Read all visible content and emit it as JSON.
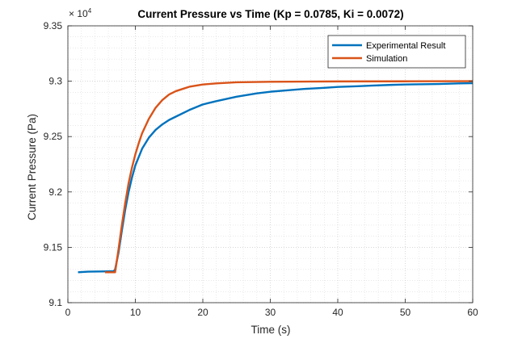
{
  "chart_data": {
    "type": "line",
    "title": "Current Pressure vs Time (Kp = 0.0785, Ki = 0.0072)",
    "xlabel": "Time (s)",
    "ylabel": "Current Pressure (Pa)",
    "exponent_label": "× 10",
    "exponent_power": "4",
    "xlim": [
      0,
      60
    ],
    "ylim": [
      9.1,
      9.35
    ],
    "x_ticks": [
      0,
      10,
      20,
      30,
      40,
      50,
      60
    ],
    "x_tick_labels": [
      "0",
      "10",
      "20",
      "30",
      "40",
      "50",
      "60"
    ],
    "y_ticks": [
      9.1,
      9.15,
      9.2,
      9.25,
      9.3,
      9.35
    ],
    "y_tick_labels": [
      "9.1",
      "9.15",
      "9.2",
      "9.25",
      "9.3",
      "9.35"
    ],
    "grid": true,
    "minor_grid": true,
    "legend_position": "top-right",
    "series": [
      {
        "name": "Experimental Result",
        "color": "#0072BD",
        "x": [
          1.5,
          3,
          5,
          6.8,
          7,
          7.5,
          8,
          8.5,
          9,
          9.5,
          10,
          11,
          12,
          13,
          14,
          15,
          16,
          18,
          20,
          22,
          25,
          28,
          30,
          33,
          35,
          38,
          40,
          43,
          45,
          48,
          50,
          53,
          55,
          58,
          60
        ],
        "y": [
          9.1275,
          9.128,
          9.1282,
          9.1285,
          9.13,
          9.145,
          9.165,
          9.184,
          9.2,
          9.213,
          9.224,
          9.239,
          9.249,
          9.256,
          9.261,
          9.265,
          9.268,
          9.274,
          9.279,
          9.282,
          9.286,
          9.289,
          9.2905,
          9.292,
          9.293,
          9.294,
          9.2948,
          9.2955,
          9.296,
          9.2967,
          9.297,
          9.2973,
          9.2975,
          9.298,
          9.2982
        ]
      },
      {
        "name": "Simulation",
        "color": "#D95319",
        "x": [
          5.5,
          7,
          7.5,
          8,
          8.5,
          9,
          9.5,
          10,
          10.5,
          11,
          12,
          13,
          14,
          15,
          16,
          17,
          18,
          20,
          22,
          25,
          30,
          40,
          50,
          60
        ],
        "y": [
          9.1275,
          9.1275,
          9.148,
          9.17,
          9.19,
          9.208,
          9.222,
          9.234,
          9.244,
          9.253,
          9.266,
          9.276,
          9.283,
          9.288,
          9.291,
          9.293,
          9.295,
          9.297,
          9.298,
          9.299,
          9.2995,
          9.2998,
          9.2999,
          9.3
        ]
      }
    ]
  }
}
